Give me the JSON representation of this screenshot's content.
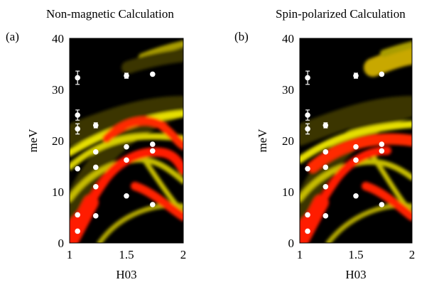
{
  "chart_data": [
    {
      "type": "heatmap",
      "panel_label": "(a)",
      "title": "Non-magnetic Calculation",
      "xlabel": "H03",
      "ylabel": "meV",
      "xlim": [
        1,
        2
      ],
      "ylim": [
        0,
        40
      ],
      "xticks": [
        "1",
        "1.5",
        "2"
      ],
      "yticks": [
        "0",
        "10",
        "20",
        "30",
        "40"
      ],
      "colormap": [
        "#000000",
        "#5a5200",
        "#ffff00",
        "#ff0000"
      ],
      "grid": false,
      "points": [
        {
          "x": 1.07,
          "y": 2.3
        },
        {
          "x": 1.07,
          "y": 5.5
        },
        {
          "x": 1.07,
          "y": 14.5
        },
        {
          "x": 1.07,
          "y": 22.3,
          "err": 1.0
        },
        {
          "x": 1.07,
          "y": 25.0,
          "err": 1.0
        },
        {
          "x": 1.07,
          "y": 32.3,
          "err": 1.3
        },
        {
          "x": 1.23,
          "y": 5.3
        },
        {
          "x": 1.23,
          "y": 11.0
        },
        {
          "x": 1.23,
          "y": 14.8
        },
        {
          "x": 1.23,
          "y": 17.8
        },
        {
          "x": 1.23,
          "y": 23.0,
          "err": 0.5
        },
        {
          "x": 1.5,
          "y": 9.2
        },
        {
          "x": 1.5,
          "y": 16.2
        },
        {
          "x": 1.5,
          "y": 18.8
        },
        {
          "x": 1.5,
          "y": 32.7,
          "err": 0.5
        },
        {
          "x": 1.73,
          "y": 7.5
        },
        {
          "x": 1.73,
          "y": 18.0
        },
        {
          "x": 1.73,
          "y": 19.3
        },
        {
          "x": 1.73,
          "y": 33.0
        }
      ]
    },
    {
      "type": "heatmap",
      "panel_label": "(b)",
      "title": "Spin-polarized Calculation",
      "xlabel": "H03",
      "ylabel": "meV",
      "xlim": [
        1,
        2
      ],
      "ylim": [
        0,
        40
      ],
      "xticks": [
        "1",
        "1.5",
        "2"
      ],
      "yticks": [
        "0",
        "10",
        "20",
        "30",
        "40"
      ],
      "colormap": [
        "#000000",
        "#5a5200",
        "#ffff00",
        "#ff0000"
      ],
      "grid": false,
      "points": [
        {
          "x": 1.07,
          "y": 2.3
        },
        {
          "x": 1.07,
          "y": 5.5
        },
        {
          "x": 1.07,
          "y": 14.5
        },
        {
          "x": 1.07,
          "y": 22.3,
          "err": 1.0
        },
        {
          "x": 1.07,
          "y": 25.0,
          "err": 1.0
        },
        {
          "x": 1.07,
          "y": 32.3,
          "err": 1.3
        },
        {
          "x": 1.23,
          "y": 5.3
        },
        {
          "x": 1.23,
          "y": 11.0
        },
        {
          "x": 1.23,
          "y": 14.8
        },
        {
          "x": 1.23,
          "y": 17.8
        },
        {
          "x": 1.23,
          "y": 23.0,
          "err": 0.5
        },
        {
          "x": 1.5,
          "y": 9.2
        },
        {
          "x": 1.5,
          "y": 16.2
        },
        {
          "x": 1.5,
          "y": 18.8
        },
        {
          "x": 1.5,
          "y": 32.7,
          "err": 0.5
        },
        {
          "x": 1.73,
          "y": 7.5
        },
        {
          "x": 1.73,
          "y": 18.0
        },
        {
          "x": 1.73,
          "y": 19.3
        },
        {
          "x": 1.73,
          "y": 33.0
        }
      ]
    }
  ]
}
